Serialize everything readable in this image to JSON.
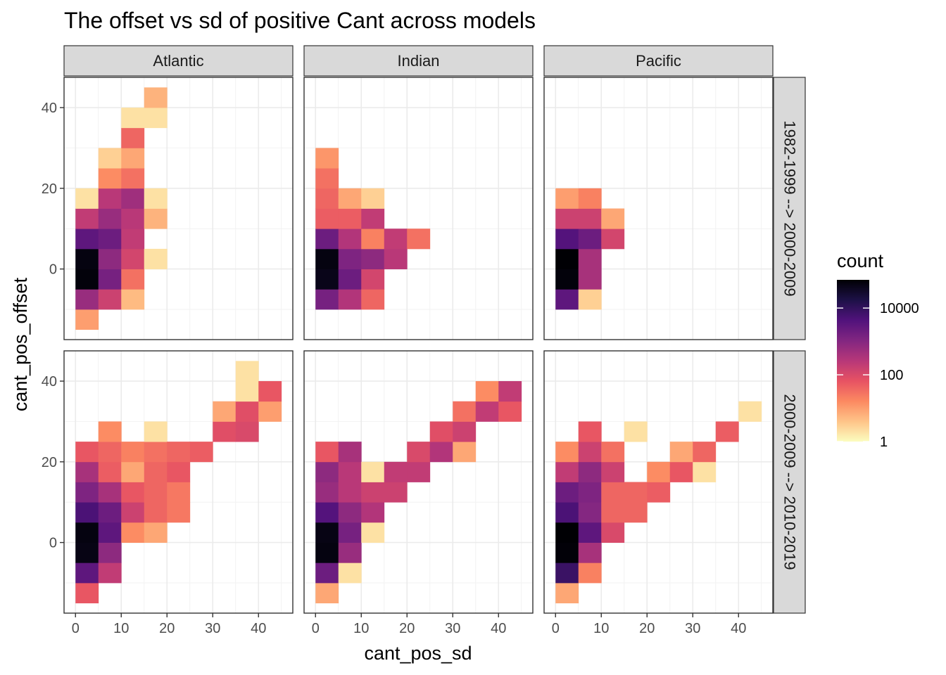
{
  "chart_data": {
    "type": "heatmap",
    "title": "The offset vs sd of positive Cant across models",
    "xlabel": "cant_pos_sd",
    "ylabel": "cant_pos_offset",
    "xlim": [
      -2.5,
      47.5
    ],
    "ylim": [
      -17.5,
      47.5
    ],
    "x_breaks": [
      0,
      10,
      20,
      30,
      40
    ],
    "y_breaks": [
      0,
      20,
      40
    ],
    "bin_width": 5,
    "columns": [
      "Atlantic",
      "Indian",
      "Pacific"
    ],
    "rows": [
      "1982-1999 --> 2000-2009",
      "2000-2009 --> 2010-2019"
    ],
    "legend": {
      "title": "count",
      "scale": "log10",
      "range": [
        1,
        70000
      ],
      "breaks": [
        1,
        100,
        10000
      ],
      "labels": [
        "1",
        "100",
        "10000"
      ]
    },
    "cell_format": "[sd_bin_center, offset_bin_center, count]",
    "panels": [
      {
        "column": "Atlantic",
        "row": "1982-1999 --> 2000-2009",
        "cells": [
          [
            2.5,
            -12.5,
            10
          ],
          [
            2.5,
            -7.5,
            600
          ],
          [
            2.5,
            -2.5,
            60000
          ],
          [
            2.5,
            2.5,
            55000
          ],
          [
            2.5,
            7.5,
            3000
          ],
          [
            2.5,
            12.5,
            200
          ],
          [
            2.5,
            17.5,
            2
          ],
          [
            7.5,
            -7.5,
            150
          ],
          [
            7.5,
            -2.5,
            1500
          ],
          [
            7.5,
            2.5,
            800
          ],
          [
            7.5,
            7.5,
            2000
          ],
          [
            7.5,
            12.5,
            600
          ],
          [
            7.5,
            17.5,
            250
          ],
          [
            7.5,
            22.5,
            15
          ],
          [
            7.5,
            27.5,
            3
          ],
          [
            12.5,
            -7.5,
            5
          ],
          [
            12.5,
            -2.5,
            30
          ],
          [
            12.5,
            2.5,
            120
          ],
          [
            12.5,
            7.5,
            200
          ],
          [
            12.5,
            12.5,
            250
          ],
          [
            12.5,
            17.5,
            500
          ],
          [
            12.5,
            22.5,
            30
          ],
          [
            12.5,
            27.5,
            8
          ],
          [
            12.5,
            32.5,
            40
          ],
          [
            12.5,
            37.5,
            2
          ],
          [
            17.5,
            2.5,
            2
          ],
          [
            17.5,
            12.5,
            6
          ],
          [
            17.5,
            17.5,
            2
          ],
          [
            17.5,
            37.5,
            2
          ],
          [
            17.5,
            42.5,
            6
          ]
        ]
      },
      {
        "column": "Indian",
        "row": "1982-1999 --> 2000-2009",
        "cells": [
          [
            2.5,
            -7.5,
            1500
          ],
          [
            2.5,
            -2.5,
            45000
          ],
          [
            2.5,
            2.5,
            55000
          ],
          [
            2.5,
            7.5,
            2000
          ],
          [
            2.5,
            12.5,
            50
          ],
          [
            2.5,
            17.5,
            40
          ],
          [
            2.5,
            22.5,
            30
          ],
          [
            2.5,
            27.5,
            12
          ],
          [
            7.5,
            -7.5,
            300
          ],
          [
            7.5,
            -2.5,
            2000
          ],
          [
            7.5,
            2.5,
            1200
          ],
          [
            7.5,
            7.5,
            300
          ],
          [
            7.5,
            12.5,
            50
          ],
          [
            7.5,
            17.5,
            8
          ],
          [
            12.5,
            -7.5,
            40
          ],
          [
            12.5,
            -2.5,
            120
          ],
          [
            12.5,
            2.5,
            800
          ],
          [
            12.5,
            7.5,
            20
          ],
          [
            12.5,
            12.5,
            200
          ],
          [
            12.5,
            17.5,
            3
          ],
          [
            17.5,
            2.5,
            250
          ],
          [
            17.5,
            7.5,
            200
          ],
          [
            22.5,
            7.5,
            30
          ]
        ]
      },
      {
        "column": "Pacific",
        "row": "1982-1999 --> 2000-2009",
        "cells": [
          [
            2.5,
            -7.5,
            3000
          ],
          [
            2.5,
            -2.5,
            60000
          ],
          [
            2.5,
            2.5,
            70000
          ],
          [
            2.5,
            7.5,
            4000
          ],
          [
            2.5,
            12.5,
            150
          ],
          [
            2.5,
            17.5,
            10
          ],
          [
            7.5,
            -7.5,
            3
          ],
          [
            7.5,
            -2.5,
            400
          ],
          [
            7.5,
            2.5,
            400
          ],
          [
            7.5,
            7.5,
            2000
          ],
          [
            7.5,
            12.5,
            150
          ],
          [
            7.5,
            17.5,
            20
          ],
          [
            12.5,
            7.5,
            120
          ],
          [
            12.5,
            12.5,
            8
          ]
        ]
      },
      {
        "column": "Atlantic",
        "row": "2000-2009 --> 2010-2019",
        "cells": [
          [
            2.5,
            -12.5,
            60
          ],
          [
            2.5,
            -7.5,
            3000
          ],
          [
            2.5,
            -2.5,
            50000
          ],
          [
            2.5,
            2.5,
            55000
          ],
          [
            2.5,
            7.5,
            5000
          ],
          [
            2.5,
            12.5,
            1200
          ],
          [
            2.5,
            17.5,
            400
          ],
          [
            2.5,
            22.5,
            60
          ],
          [
            7.5,
            -7.5,
            200
          ],
          [
            7.5,
            -2.5,
            800
          ],
          [
            7.5,
            2.5,
            3000
          ],
          [
            7.5,
            7.5,
            2000
          ],
          [
            7.5,
            12.5,
            400
          ],
          [
            7.5,
            17.5,
            50
          ],
          [
            7.5,
            22.5,
            40
          ],
          [
            7.5,
            27.5,
            15
          ],
          [
            12.5,
            2.5,
            15
          ],
          [
            12.5,
            7.5,
            150
          ],
          [
            12.5,
            12.5,
            60
          ],
          [
            12.5,
            17.5,
            8
          ],
          [
            12.5,
            22.5,
            20
          ],
          [
            17.5,
            2.5,
            8
          ],
          [
            17.5,
            7.5,
            40
          ],
          [
            17.5,
            12.5,
            40
          ],
          [
            17.5,
            17.5,
            40
          ],
          [
            17.5,
            22.5,
            30
          ],
          [
            17.5,
            27.5,
            2
          ],
          [
            22.5,
            7.5,
            25
          ],
          [
            22.5,
            12.5,
            25
          ],
          [
            22.5,
            17.5,
            60
          ],
          [
            22.5,
            22.5,
            40
          ],
          [
            27.5,
            22.5,
            50
          ],
          [
            32.5,
            27.5,
            80
          ],
          [
            32.5,
            32.5,
            8
          ],
          [
            37.5,
            27.5,
            100
          ],
          [
            37.5,
            32.5,
            80
          ],
          [
            37.5,
            37.5,
            2
          ],
          [
            37.5,
            42.5,
            2
          ],
          [
            42.5,
            32.5,
            10
          ],
          [
            42.5,
            37.5,
            60
          ]
        ]
      },
      {
        "column": "Indian",
        "row": "2000-2009 --> 2010-2019",
        "cells": [
          [
            2.5,
            -12.5,
            8
          ],
          [
            2.5,
            -7.5,
            2000
          ],
          [
            2.5,
            -2.5,
            55000
          ],
          [
            2.5,
            2.5,
            50000
          ],
          [
            2.5,
            7.5,
            4000
          ],
          [
            2.5,
            12.5,
            600
          ],
          [
            2.5,
            17.5,
            800
          ],
          [
            2.5,
            22.5,
            60
          ],
          [
            7.5,
            -7.5,
            2
          ],
          [
            7.5,
            -2.5,
            600
          ],
          [
            7.5,
            2.5,
            1500
          ],
          [
            7.5,
            7.5,
            800
          ],
          [
            7.5,
            12.5,
            250
          ],
          [
            7.5,
            17.5,
            250
          ],
          [
            7.5,
            22.5,
            400
          ],
          [
            12.5,
            2.5,
            2
          ],
          [
            12.5,
            7.5,
            300
          ],
          [
            12.5,
            12.5,
            150
          ],
          [
            12.5,
            17.5,
            2
          ],
          [
            17.5,
            12.5,
            150
          ],
          [
            17.5,
            17.5,
            200
          ],
          [
            22.5,
            17.5,
            200
          ],
          [
            22.5,
            22.5,
            100
          ],
          [
            27.5,
            22.5,
            300
          ],
          [
            27.5,
            27.5,
            80
          ],
          [
            32.5,
            22.5,
            8
          ],
          [
            32.5,
            27.5,
            150
          ],
          [
            32.5,
            32.5,
            30
          ],
          [
            37.5,
            32.5,
            200
          ],
          [
            37.5,
            37.5,
            15
          ],
          [
            42.5,
            32.5,
            60
          ],
          [
            42.5,
            37.5,
            200
          ]
        ]
      },
      {
        "column": "Pacific",
        "row": "2000-2009 --> 2010-2019",
        "cells": [
          [
            2.5,
            -12.5,
            8
          ],
          [
            2.5,
            -7.5,
            8000
          ],
          [
            2.5,
            -2.5,
            65000
          ],
          [
            2.5,
            2.5,
            70000
          ],
          [
            2.5,
            7.5,
            5000
          ],
          [
            2.5,
            12.5,
            2000
          ],
          [
            2.5,
            17.5,
            200
          ],
          [
            2.5,
            22.5,
            15
          ],
          [
            7.5,
            -7.5,
            20
          ],
          [
            7.5,
            -2.5,
            400
          ],
          [
            7.5,
            2.5,
            3000
          ],
          [
            7.5,
            7.5,
            1000
          ],
          [
            7.5,
            12.5,
            1200
          ],
          [
            7.5,
            17.5,
            800
          ],
          [
            7.5,
            22.5,
            150
          ],
          [
            7.5,
            27.5,
            60
          ],
          [
            12.5,
            2.5,
            100
          ],
          [
            12.5,
            7.5,
            40
          ],
          [
            12.5,
            12.5,
            40
          ],
          [
            12.5,
            17.5,
            150
          ],
          [
            12.5,
            22.5,
            30
          ],
          [
            17.5,
            7.5,
            40
          ],
          [
            17.5,
            12.5,
            40
          ],
          [
            17.5,
            27.5,
            2
          ],
          [
            22.5,
            12.5,
            50
          ],
          [
            22.5,
            17.5,
            15
          ],
          [
            27.5,
            17.5,
            60
          ],
          [
            27.5,
            22.5,
            8
          ],
          [
            32.5,
            17.5,
            2
          ],
          [
            32.5,
            22.5,
            40
          ],
          [
            37.5,
            27.5,
            50
          ],
          [
            42.5,
            32.5,
            2
          ]
        ]
      }
    ]
  }
}
